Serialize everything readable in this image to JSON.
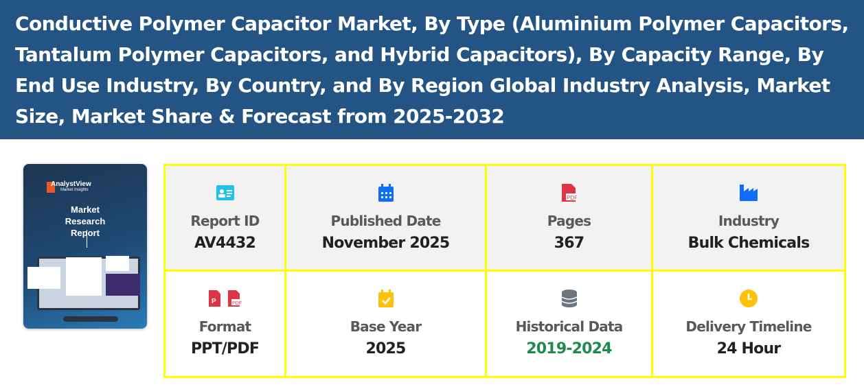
{
  "header": {
    "title": "Conductive Polymer Capacitor Market, By Type (Aluminium Polymer Capacitors, Tantalum Polymer Capacitors, and Hybrid Capacitors), By Capacity Range, By End Use Industry, By Country, and By Region Global Industry Analysis, Market Size, Market Share & Forecast from 2025-2032"
  },
  "cover": {
    "brand": "AnalystView",
    "brand_sub": "Market Insights",
    "title": "Market Research Report"
  },
  "details": [
    {
      "label": "Report ID",
      "value": "AV4432",
      "icon": "id-card-icon",
      "color": "#1fc2e8"
    },
    {
      "label": "Published Date",
      "value": "November 2025",
      "icon": "calendar-icon",
      "color": "#0d6efd"
    },
    {
      "label": "Pages",
      "value": "367",
      "icon": "file-pdf-icon",
      "color": "#dc3545"
    },
    {
      "label": "Industry",
      "value": "Bulk Chemicals",
      "icon": "industry-icon",
      "color": "#0d6efd"
    },
    {
      "label": "Format",
      "value": "PPT/PDF",
      "icon": "file-ppt-pdf-icon",
      "color": "#dc3545"
    },
    {
      "label": "Base Year",
      "value": "2025",
      "icon": "calendar-check-icon",
      "color": "#ffc107"
    },
    {
      "label": "Historical Data",
      "value": "2019-2024",
      "icon": "database-icon",
      "color": "#6c757d",
      "value_color": "#1f8a4c"
    },
    {
      "label": "Delivery Timeline",
      "value": "24 Hour",
      "icon": "clock-icon",
      "color": "#ffc107"
    }
  ]
}
